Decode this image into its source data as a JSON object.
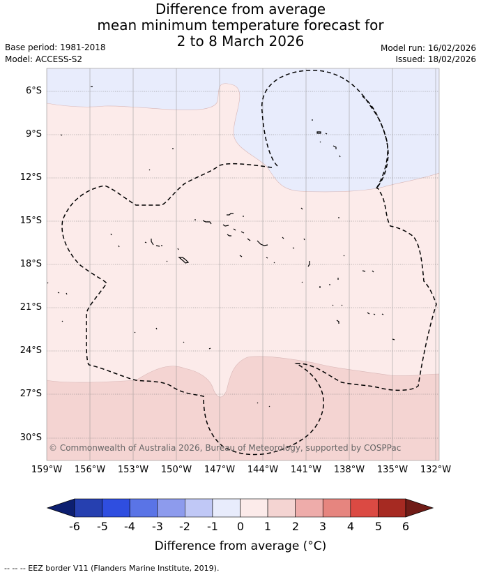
{
  "header": {
    "title_lines": [
      "Difference from average",
      "mean minimum temperature forecast for",
      "2 to 8 March 2026"
    ],
    "base_period": "Base period: 1981-2018",
    "model": "Model: ACCESS-S2",
    "model_run": "Model run: 16/02/2026",
    "issued": "Issued: 18/02/2026"
  },
  "map": {
    "lat_labels": [
      "6°S",
      "9°S",
      "12°S",
      "15°S",
      "18°S",
      "21°S",
      "24°S",
      "27°S",
      "30°S"
    ],
    "lon_labels": [
      "159°W",
      "156°W",
      "153°W",
      "150°W",
      "147°W",
      "144°W",
      "141°W",
      "138°W",
      "135°W",
      "132°W"
    ],
    "copyright": "© Commonwealth of Australia 2026, Bureau of Meteorology, supported by COSPPac",
    "colors": {
      "band_-1_0": "#e8ecfc",
      "band_0_1": "#fcebea",
      "band_1_2": "#f4d4d2"
    }
  },
  "colorbar": {
    "ticks": [
      "-6",
      "-5",
      "-4",
      "-3",
      "-2",
      "-1",
      "0",
      "1",
      "2",
      "3",
      "4",
      "5",
      "6"
    ],
    "colors": [
      "#0d1f70",
      "#2640b0",
      "#2f4ee0",
      "#5a74e6",
      "#8d9bed",
      "#c0c8f6",
      "#e8ecfc",
      "#fcebea",
      "#f4d4d2",
      "#eeacaa",
      "#e6857f",
      "#db4a43",
      "#a62a22",
      "#701c17"
    ],
    "title": "Difference from average (°C)"
  },
  "footer": {
    "legend": "-- -- -- EEZ border V11 (Flanders Marine Institute, 2019)."
  }
}
